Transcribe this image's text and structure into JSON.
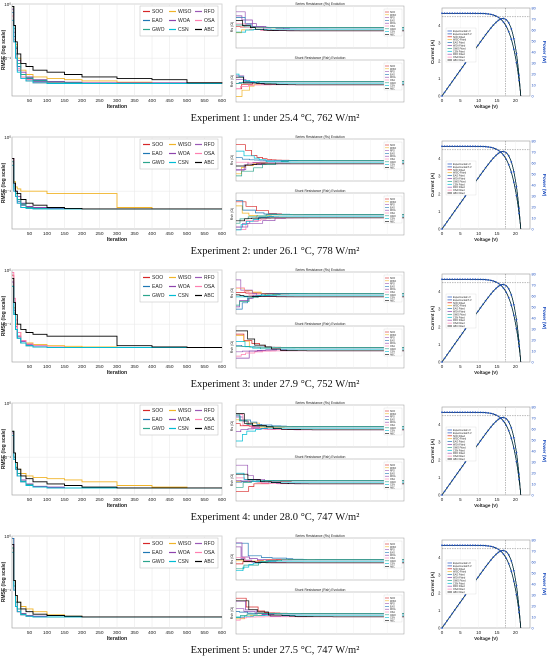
{
  "figure": {
    "captions": [
      "Experiment 1: under 25.4 °C, 762 W/m²",
      "Experiment 2: under 26.1 °C, 778 W/m²",
      "Experiment 3: under 27.9 °C, 752 W/m²",
      "Experiment 4: under 28.0 °C, 747 W/m²",
      "Experiment 5: under 27.5 °C, 747 W/m²"
    ]
  },
  "panels": {
    "convergence": {
      "ylabel": "RMSE (log scale)",
      "xlabel": "Iteration",
      "xticks": [
        "50",
        "100",
        "150",
        "200",
        "250",
        "300",
        "350",
        "400",
        "450",
        "500",
        "550",
        "600"
      ],
      "legend": [
        "SOO",
        "WISO",
        "RFO",
        "EAO",
        "WOA",
        "OSA",
        "GWO",
        "CSN",
        "ABC"
      ]
    },
    "series_resistance": {
      "title": "Series Resistance (Rs) Evolution",
      "ylabel": "Rs (Ω)"
    },
    "shunt_resistance": {
      "title": "Shunt Resistance (Rsh) Evolution",
      "ylabel": "Rsh (Ω)"
    },
    "iv_pv": {
      "xlabel": "Voltage (V)",
      "ylabel_left": "Current (A)",
      "ylabel_right": "Power (W)",
      "xticks": [
        "0",
        "5",
        "10",
        "15",
        "20"
      ],
      "legend": [
        "Experimental I-V",
        "Experimental P-V",
        "SOO Fitted",
        "WISO Fitted",
        "EAO Fitted",
        "WOA Fitted",
        "GWO Fitted",
        "CSN Fitted",
        "RFO Fitted",
        "OSA Fitted",
        "ABC Fitted"
      ]
    }
  },
  "colors": {
    "SOO": "#d62728",
    "WISO": "#f0b429",
    "RFO": "#9b59b6",
    "EAO": "#1f77b4",
    "WOA": "#8e44ad",
    "OSA": "#ff7fb0",
    "GWO": "#2ca58d",
    "CSN": "#00bcd4",
    "ABC": "#000000"
  },
  "chart_data": [
    {
      "type": "line",
      "title": "Experiment 1: under 25.4 °C, 762 W/m²",
      "xlabel": "Iteration",
      "ylabel": "RMSE (log scale)",
      "x": [
        1,
        5,
        10,
        15,
        25,
        40,
        60,
        100,
        150,
        200,
        300,
        400,
        500,
        600
      ],
      "series": [
        {
          "name": "SOO",
          "values": [
            0.9,
            0.2,
            0.12,
            0.07,
            0.045,
            0.038,
            0.035,
            0.034,
            0.034,
            0.034,
            0.034,
            0.034,
            0.034,
            0.034
          ]
        },
        {
          "name": "WISO",
          "values": [
            0.6,
            0.3,
            0.18,
            0.1,
            0.06,
            0.05,
            0.045,
            0.042,
            0.04,
            0.038,
            0.036,
            0.035,
            0.035,
            0.035
          ]
        },
        {
          "name": "RFO",
          "values": [
            0.5,
            0.2,
            0.1,
            0.06,
            0.045,
            0.04,
            0.037,
            0.035,
            0.034,
            0.034,
            0.034,
            0.034,
            0.034,
            0.034
          ]
        },
        {
          "name": "EAO",
          "values": [
            0.7,
            0.25,
            0.12,
            0.07,
            0.05,
            0.042,
            0.038,
            0.035,
            0.034,
            0.034,
            0.034,
            0.034,
            0.034,
            0.034
          ]
        },
        {
          "name": "WOA",
          "values": [
            0.8,
            0.3,
            0.15,
            0.09,
            0.055,
            0.045,
            0.04,
            0.037,
            0.036,
            0.035,
            0.035,
            0.035,
            0.035,
            0.035
          ]
        },
        {
          "name": "OSA",
          "values": [
            0.6,
            0.22,
            0.11,
            0.065,
            0.045,
            0.04,
            0.036,
            0.035,
            0.034,
            0.034,
            0.034,
            0.034,
            0.034,
            0.034
          ]
        },
        {
          "name": "GWO",
          "values": [
            0.9,
            0.35,
            0.16,
            0.08,
            0.05,
            0.043,
            0.039,
            0.036,
            0.035,
            0.034,
            0.034,
            0.034,
            0.034,
            0.034
          ]
        },
        {
          "name": "CSN",
          "values": [
            0.5,
            0.2,
            0.1,
            0.055,
            0.042,
            0.038,
            0.035,
            0.034,
            0.034,
            0.034,
            0.034,
            0.034,
            0.034,
            0.034
          ]
        },
        {
          "name": "ABC",
          "values": [
            0.9,
            0.4,
            0.2,
            0.12,
            0.08,
            0.07,
            0.06,
            0.055,
            0.05,
            0.045,
            0.042,
            0.04,
            0.035,
            0.034
          ]
        }
      ]
    },
    {
      "type": "line",
      "title": "Experiment 2: under 26.1 °C, 778 W/m²",
      "xlabel": "Iteration",
      "ylabel": "RMSE (log scale)",
      "x": [
        1,
        5,
        10,
        15,
        25,
        40,
        60,
        100,
        150,
        200,
        300,
        400,
        500,
        600
      ],
      "series": [
        {
          "name": "SOO",
          "values": [
            0.4,
            0.12,
            0.09,
            0.07,
            0.055,
            0.05,
            0.048,
            0.047,
            0.047,
            0.047,
            0.047,
            0.047,
            0.047,
            0.047
          ]
        },
        {
          "name": "WISO",
          "values": [
            0.3,
            0.15,
            0.12,
            0.11,
            0.1,
            0.1,
            0.1,
            0.09,
            0.09,
            0.09,
            0.05,
            0.047,
            0.047,
            0.047
          ]
        },
        {
          "name": "RFO",
          "values": [
            0.35,
            0.1,
            0.08,
            0.06,
            0.05,
            0.048,
            0.047,
            0.047,
            0.047,
            0.047,
            0.047,
            0.047,
            0.047,
            0.047
          ]
        },
        {
          "name": "EAO",
          "values": [
            0.3,
            0.11,
            0.08,
            0.065,
            0.055,
            0.05,
            0.048,
            0.047,
            0.047,
            0.047,
            0.047,
            0.047,
            0.047,
            0.047
          ]
        },
        {
          "name": "WOA",
          "values": [
            0.4,
            0.13,
            0.1,
            0.08,
            0.06,
            0.052,
            0.05,
            0.048,
            0.047,
            0.047,
            0.047,
            0.047,
            0.047,
            0.047
          ]
        },
        {
          "name": "OSA",
          "values": [
            0.3,
            0.1,
            0.08,
            0.06,
            0.05,
            0.048,
            0.047,
            0.047,
            0.047,
            0.047,
            0.047,
            0.047,
            0.047,
            0.047
          ]
        },
        {
          "name": "GWO",
          "values": [
            0.35,
            0.12,
            0.09,
            0.07,
            0.058,
            0.05,
            0.048,
            0.047,
            0.047,
            0.047,
            0.047,
            0.047,
            0.047,
            0.047
          ]
        },
        {
          "name": "CSN",
          "values": [
            0.3,
            0.1,
            0.08,
            0.06,
            0.05,
            0.048,
            0.047,
            0.047,
            0.047,
            0.047,
            0.047,
            0.047,
            0.047,
            0.047
          ]
        },
        {
          "name": "ABC",
          "values": [
            0.4,
            0.14,
            0.1,
            0.09,
            0.07,
            0.06,
            0.055,
            0.05,
            0.048,
            0.047,
            0.047,
            0.047,
            0.047,
            0.047
          ]
        }
      ]
    },
    {
      "type": "line",
      "title": "Experiment 3: under 27.9 °C, 752 W/m²",
      "xlabel": "Iteration",
      "ylabel": "RMSE (log scale)",
      "x": [
        1,
        5,
        10,
        15,
        25,
        40,
        60,
        100,
        150,
        200,
        300,
        400,
        500,
        600
      ],
      "series": [
        {
          "name": "SOO",
          "values": [
            0.8,
            0.2,
            0.1,
            0.06,
            0.045,
            0.04,
            0.038,
            0.037,
            0.037,
            0.037,
            0.037,
            0.037,
            0.037,
            0.037
          ]
        },
        {
          "name": "WISO",
          "values": [
            0.5,
            0.2,
            0.1,
            0.07,
            0.05,
            0.045,
            0.042,
            0.04,
            0.039,
            0.038,
            0.037,
            0.037,
            0.037,
            0.037
          ]
        },
        {
          "name": "RFO",
          "values": [
            0.6,
            0.15,
            0.08,
            0.055,
            0.045,
            0.04,
            0.038,
            0.037,
            0.037,
            0.037,
            0.037,
            0.037,
            0.037,
            0.037
          ]
        },
        {
          "name": "EAO",
          "values": [
            0.5,
            0.15,
            0.08,
            0.055,
            0.045,
            0.04,
            0.038,
            0.037,
            0.037,
            0.037,
            0.037,
            0.037,
            0.037,
            0.037
          ]
        },
        {
          "name": "WOA",
          "values": [
            0.6,
            0.18,
            0.09,
            0.06,
            0.048,
            0.042,
            0.04,
            0.038,
            0.037,
            0.037,
            0.037,
            0.037,
            0.037,
            0.037
          ]
        },
        {
          "name": "OSA",
          "values": [
            0.9,
            0.3,
            0.12,
            0.07,
            0.05,
            0.043,
            0.04,
            0.038,
            0.037,
            0.037,
            0.037,
            0.037,
            0.037,
            0.037
          ]
        },
        {
          "name": "GWO",
          "values": [
            0.5,
            0.16,
            0.08,
            0.055,
            0.045,
            0.04,
            0.038,
            0.037,
            0.037,
            0.037,
            0.037,
            0.037,
            0.037,
            0.037
          ]
        },
        {
          "name": "CSN",
          "values": [
            0.5,
            0.15,
            0.08,
            0.055,
            0.045,
            0.04,
            0.038,
            0.037,
            0.037,
            0.037,
            0.037,
            0.037,
            0.037,
            0.037
          ]
        },
        {
          "name": "ABC",
          "values": [
            0.7,
            0.25,
            0.15,
            0.1,
            0.08,
            0.07,
            0.065,
            0.06,
            0.06,
            0.06,
            0.04,
            0.038,
            0.037,
            0.037
          ]
        }
      ]
    },
    {
      "type": "line",
      "title": "Experiment 4: under 28.0 °C, 747 W/m²",
      "xlabel": "Iteration",
      "ylabel": "RMSE (log scale)",
      "x": [
        1,
        5,
        10,
        15,
        25,
        40,
        60,
        100,
        150,
        200,
        300,
        400,
        500,
        600
      ],
      "series": [
        {
          "name": "SOO",
          "values": [
            0.3,
            0.1,
            0.06,
            0.045,
            0.035,
            0.03,
            0.028,
            0.027,
            0.027,
            0.027,
            0.027,
            0.027,
            0.027,
            0.027
          ]
        },
        {
          "name": "WISO",
          "values": [
            0.3,
            0.12,
            0.08,
            0.06,
            0.05,
            0.045,
            0.042,
            0.04,
            0.038,
            0.035,
            0.03,
            0.028,
            0.027,
            0.027
          ]
        },
        {
          "name": "RFO",
          "values": [
            0.25,
            0.09,
            0.06,
            0.045,
            0.035,
            0.03,
            0.028,
            0.027,
            0.027,
            0.027,
            0.027,
            0.027,
            0.027,
            0.027
          ]
        },
        {
          "name": "EAO",
          "values": [
            0.3,
            0.1,
            0.06,
            0.045,
            0.035,
            0.03,
            0.028,
            0.027,
            0.027,
            0.027,
            0.027,
            0.027,
            0.027,
            0.027
          ]
        },
        {
          "name": "WOA",
          "values": [
            0.28,
            0.1,
            0.065,
            0.05,
            0.038,
            0.032,
            0.029,
            0.028,
            0.027,
            0.027,
            0.027,
            0.027,
            0.027,
            0.027
          ]
        },
        {
          "name": "OSA",
          "values": [
            0.25,
            0.09,
            0.06,
            0.045,
            0.035,
            0.03,
            0.028,
            0.027,
            0.027,
            0.027,
            0.027,
            0.027,
            0.027,
            0.027
          ]
        },
        {
          "name": "GWO",
          "values": [
            0.3,
            0.1,
            0.065,
            0.05,
            0.036,
            0.031,
            0.028,
            0.027,
            0.027,
            0.027,
            0.027,
            0.027,
            0.027,
            0.027
          ]
        },
        {
          "name": "CSN",
          "values": [
            0.25,
            0.09,
            0.06,
            0.045,
            0.035,
            0.03,
            0.028,
            0.027,
            0.027,
            0.027,
            0.027,
            0.027,
            0.027,
            0.027
          ]
        },
        {
          "name": "ABC",
          "values": [
            0.3,
            0.12,
            0.08,
            0.06,
            0.045,
            0.04,
            0.035,
            0.032,
            0.03,
            0.028,
            0.027,
            0.027,
            0.027,
            0.027
          ]
        }
      ]
    },
    {
      "type": "line",
      "title": "Experiment 5: under 27.5 °C, 747 W/m²",
      "xlabel": "Iteration",
      "ylabel": "RMSE (log scale)",
      "x": [
        1,
        5,
        10,
        15,
        25,
        40,
        60,
        100,
        150,
        200,
        300,
        400,
        500,
        600
      ],
      "series": [
        {
          "name": "SOO",
          "values": [
            0.9,
            0.1,
            0.05,
            0.04,
            0.035,
            0.033,
            0.032,
            0.032,
            0.032,
            0.032,
            0.032,
            0.032,
            0.032,
            0.032
          ]
        },
        {
          "name": "WISO",
          "values": [
            0.5,
            0.15,
            0.08,
            0.06,
            0.05,
            0.045,
            0.04,
            0.035,
            0.033,
            0.032,
            0.032,
            0.032,
            0.032,
            0.032
          ]
        },
        {
          "name": "RFO",
          "values": [
            0.6,
            0.1,
            0.05,
            0.04,
            0.035,
            0.033,
            0.032,
            0.032,
            0.032,
            0.032,
            0.032,
            0.032,
            0.032,
            0.032
          ]
        },
        {
          "name": "EAO",
          "values": [
            0.9,
            0.12,
            0.06,
            0.045,
            0.036,
            0.033,
            0.032,
            0.032,
            0.032,
            0.032,
            0.032,
            0.032,
            0.032,
            0.032
          ]
        },
        {
          "name": "WOA",
          "values": [
            0.7,
            0.12,
            0.06,
            0.045,
            0.037,
            0.034,
            0.033,
            0.032,
            0.032,
            0.032,
            0.032,
            0.032,
            0.032,
            0.032
          ]
        },
        {
          "name": "OSA",
          "values": [
            0.5,
            0.1,
            0.05,
            0.04,
            0.035,
            0.033,
            0.032,
            0.032,
            0.032,
            0.032,
            0.032,
            0.032,
            0.032,
            0.032
          ]
        },
        {
          "name": "GWO",
          "values": [
            0.6,
            0.12,
            0.06,
            0.045,
            0.036,
            0.033,
            0.032,
            0.032,
            0.032,
            0.032,
            0.032,
            0.032,
            0.032,
            0.032
          ]
        },
        {
          "name": "CSN",
          "values": [
            0.5,
            0.1,
            0.05,
            0.04,
            0.035,
            0.033,
            0.032,
            0.032,
            0.032,
            0.032,
            0.032,
            0.032,
            0.032,
            0.032
          ]
        },
        {
          "name": "ABC",
          "values": [
            0.7,
            0.15,
            0.08,
            0.06,
            0.045,
            0.04,
            0.036,
            0.034,
            0.033,
            0.032,
            0.032,
            0.032,
            0.032,
            0.032
          ]
        }
      ]
    }
  ]
}
